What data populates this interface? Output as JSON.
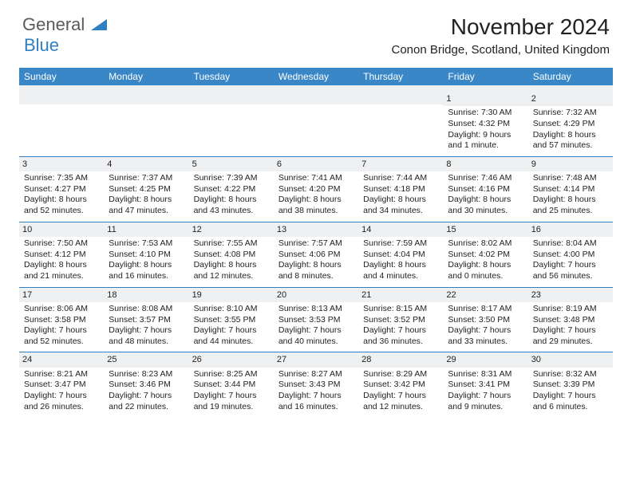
{
  "logo": {
    "main": "General",
    "sub": "Blue"
  },
  "header": {
    "month_title": "November 2024",
    "location": "Conon Bridge, Scotland, United Kingdom"
  },
  "colors": {
    "header_bg": "#3a87c7",
    "header_text": "#ffffff",
    "daynum_bg": "#eef0f2",
    "divider": "#2f7fc2",
    "text": "#222222",
    "logo_gray": "#5a5a5a",
    "logo_blue": "#2f7fc2"
  },
  "weekdays": [
    "Sunday",
    "Monday",
    "Tuesday",
    "Wednesday",
    "Thursday",
    "Friday",
    "Saturday"
  ],
  "weeks": [
    [
      null,
      null,
      null,
      null,
      null,
      {
        "day": "1",
        "sunrise": "Sunrise: 7:30 AM",
        "sunset": "Sunset: 4:32 PM",
        "daylight": "Daylight: 9 hours and 1 minute."
      },
      {
        "day": "2",
        "sunrise": "Sunrise: 7:32 AM",
        "sunset": "Sunset: 4:29 PM",
        "daylight": "Daylight: 8 hours and 57 minutes."
      }
    ],
    [
      {
        "day": "3",
        "sunrise": "Sunrise: 7:35 AM",
        "sunset": "Sunset: 4:27 PM",
        "daylight": "Daylight: 8 hours and 52 minutes."
      },
      {
        "day": "4",
        "sunrise": "Sunrise: 7:37 AM",
        "sunset": "Sunset: 4:25 PM",
        "daylight": "Daylight: 8 hours and 47 minutes."
      },
      {
        "day": "5",
        "sunrise": "Sunrise: 7:39 AM",
        "sunset": "Sunset: 4:22 PM",
        "daylight": "Daylight: 8 hours and 43 minutes."
      },
      {
        "day": "6",
        "sunrise": "Sunrise: 7:41 AM",
        "sunset": "Sunset: 4:20 PM",
        "daylight": "Daylight: 8 hours and 38 minutes."
      },
      {
        "day": "7",
        "sunrise": "Sunrise: 7:44 AM",
        "sunset": "Sunset: 4:18 PM",
        "daylight": "Daylight: 8 hours and 34 minutes."
      },
      {
        "day": "8",
        "sunrise": "Sunrise: 7:46 AM",
        "sunset": "Sunset: 4:16 PM",
        "daylight": "Daylight: 8 hours and 30 minutes."
      },
      {
        "day": "9",
        "sunrise": "Sunrise: 7:48 AM",
        "sunset": "Sunset: 4:14 PM",
        "daylight": "Daylight: 8 hours and 25 minutes."
      }
    ],
    [
      {
        "day": "10",
        "sunrise": "Sunrise: 7:50 AM",
        "sunset": "Sunset: 4:12 PM",
        "daylight": "Daylight: 8 hours and 21 minutes."
      },
      {
        "day": "11",
        "sunrise": "Sunrise: 7:53 AM",
        "sunset": "Sunset: 4:10 PM",
        "daylight": "Daylight: 8 hours and 16 minutes."
      },
      {
        "day": "12",
        "sunrise": "Sunrise: 7:55 AM",
        "sunset": "Sunset: 4:08 PM",
        "daylight": "Daylight: 8 hours and 12 minutes."
      },
      {
        "day": "13",
        "sunrise": "Sunrise: 7:57 AM",
        "sunset": "Sunset: 4:06 PM",
        "daylight": "Daylight: 8 hours and 8 minutes."
      },
      {
        "day": "14",
        "sunrise": "Sunrise: 7:59 AM",
        "sunset": "Sunset: 4:04 PM",
        "daylight": "Daylight: 8 hours and 4 minutes."
      },
      {
        "day": "15",
        "sunrise": "Sunrise: 8:02 AM",
        "sunset": "Sunset: 4:02 PM",
        "daylight": "Daylight: 8 hours and 0 minutes."
      },
      {
        "day": "16",
        "sunrise": "Sunrise: 8:04 AM",
        "sunset": "Sunset: 4:00 PM",
        "daylight": "Daylight: 7 hours and 56 minutes."
      }
    ],
    [
      {
        "day": "17",
        "sunrise": "Sunrise: 8:06 AM",
        "sunset": "Sunset: 3:58 PM",
        "daylight": "Daylight: 7 hours and 52 minutes."
      },
      {
        "day": "18",
        "sunrise": "Sunrise: 8:08 AM",
        "sunset": "Sunset: 3:57 PM",
        "daylight": "Daylight: 7 hours and 48 minutes."
      },
      {
        "day": "19",
        "sunrise": "Sunrise: 8:10 AM",
        "sunset": "Sunset: 3:55 PM",
        "daylight": "Daylight: 7 hours and 44 minutes."
      },
      {
        "day": "20",
        "sunrise": "Sunrise: 8:13 AM",
        "sunset": "Sunset: 3:53 PM",
        "daylight": "Daylight: 7 hours and 40 minutes."
      },
      {
        "day": "21",
        "sunrise": "Sunrise: 8:15 AM",
        "sunset": "Sunset: 3:52 PM",
        "daylight": "Daylight: 7 hours and 36 minutes."
      },
      {
        "day": "22",
        "sunrise": "Sunrise: 8:17 AM",
        "sunset": "Sunset: 3:50 PM",
        "daylight": "Daylight: 7 hours and 33 minutes."
      },
      {
        "day": "23",
        "sunrise": "Sunrise: 8:19 AM",
        "sunset": "Sunset: 3:48 PM",
        "daylight": "Daylight: 7 hours and 29 minutes."
      }
    ],
    [
      {
        "day": "24",
        "sunrise": "Sunrise: 8:21 AM",
        "sunset": "Sunset: 3:47 PM",
        "daylight": "Daylight: 7 hours and 26 minutes."
      },
      {
        "day": "25",
        "sunrise": "Sunrise: 8:23 AM",
        "sunset": "Sunset: 3:46 PM",
        "daylight": "Daylight: 7 hours and 22 minutes."
      },
      {
        "day": "26",
        "sunrise": "Sunrise: 8:25 AM",
        "sunset": "Sunset: 3:44 PM",
        "daylight": "Daylight: 7 hours and 19 minutes."
      },
      {
        "day": "27",
        "sunrise": "Sunrise: 8:27 AM",
        "sunset": "Sunset: 3:43 PM",
        "daylight": "Daylight: 7 hours and 16 minutes."
      },
      {
        "day": "28",
        "sunrise": "Sunrise: 8:29 AM",
        "sunset": "Sunset: 3:42 PM",
        "daylight": "Daylight: 7 hours and 12 minutes."
      },
      {
        "day": "29",
        "sunrise": "Sunrise: 8:31 AM",
        "sunset": "Sunset: 3:41 PM",
        "daylight": "Daylight: 7 hours and 9 minutes."
      },
      {
        "day": "30",
        "sunrise": "Sunrise: 8:32 AM",
        "sunset": "Sunset: 3:39 PM",
        "daylight": "Daylight: 7 hours and 6 minutes."
      }
    ]
  ]
}
